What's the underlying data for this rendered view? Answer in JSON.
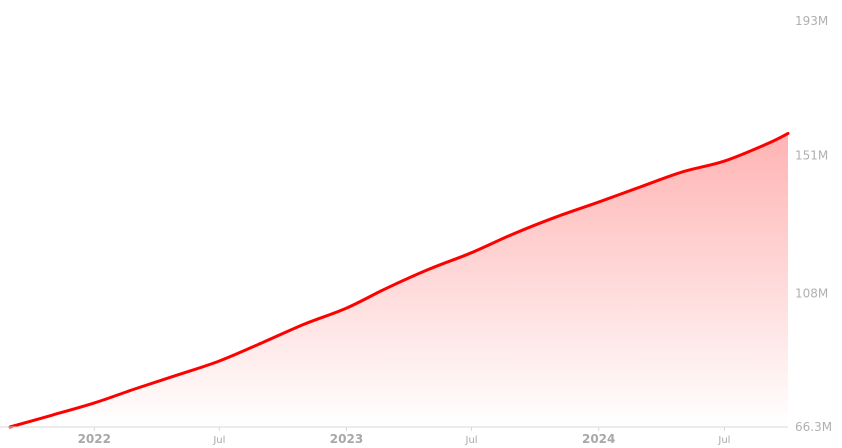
{
  "chart_data": {
    "type": "area",
    "colors": {
      "line": "#ff0000",
      "fill_top": "#ffb3b3",
      "fill_bottom": "#ffffff",
      "tick_text": "#a8a8a8"
    },
    "y_axis": {
      "position": "right",
      "ylim": [
        66.3,
        193
      ],
      "ticks": [
        {
          "value": 193,
          "label": "193M"
        },
        {
          "value": 151,
          "label": "151M"
        },
        {
          "value": 108,
          "label": "108M"
        },
        {
          "value": 66.3,
          "label": "66.3M"
        }
      ]
    },
    "x_axis": {
      "xlim": [
        "2021-09-01",
        "2024-10-01"
      ],
      "ticks": [
        {
          "date": "2022-01-01",
          "label": "2022",
          "major": true
        },
        {
          "date": "2022-07-01",
          "label": "Jul",
          "major": false
        },
        {
          "date": "2023-01-01",
          "label": "2023",
          "major": true
        },
        {
          "date": "2023-07-01",
          "label": "Jul",
          "major": false
        },
        {
          "date": "2024-01-01",
          "label": "2024",
          "major": true
        },
        {
          "date": "2024-07-01",
          "label": "Jul",
          "major": false
        }
      ]
    },
    "grid": false,
    "legend": "none",
    "series": [
      {
        "x": [
          "2021-09-01",
          "2021-11-01",
          "2022-01-01",
          "2022-03-01",
          "2022-05-01",
          "2022-07-01",
          "2022-09-01",
          "2022-11-01",
          "2023-01-01",
          "2023-03-01",
          "2023-05-01",
          "2023-07-01",
          "2023-09-01",
          "2023-11-01",
          "2024-01-01",
          "2024-03-01",
          "2024-05-01",
          "2024-07-01",
          "2024-09-01",
          "2024-10-01"
        ],
        "values": [
          66.3,
          70.0,
          73.8,
          78.2,
          82.5,
          86.9,
          92.6,
          98.4,
          103.4,
          109.7,
          115.6,
          120.7,
          126.7,
          131.9,
          136.5,
          141.2,
          145.9,
          149.3,
          154.7,
          157.9
        ]
      }
    ]
  }
}
